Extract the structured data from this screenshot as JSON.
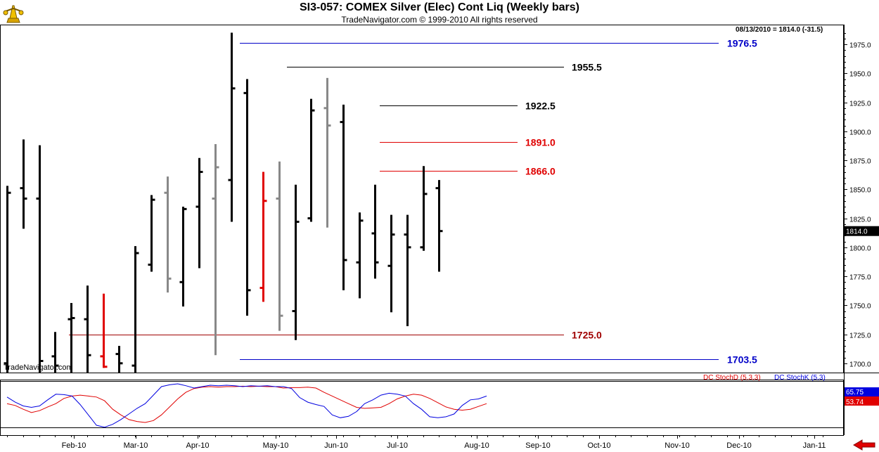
{
  "header": {
    "title": "SI3-057:  COMEX Silver (Elec) Cont Liq  (Weekly bars)",
    "subtitle": "TradeNavigator.com © 1999-2010 All rights reserved",
    "readout": "08/13/2010 = 1814.0 (-31.5)",
    "watermark": "TradeNavigator.com"
  },
  "indicator": {
    "stochd_label": "DC StochD (5,3,3)",
    "stochk_label": "DC StochK (5,3)",
    "stochd_value": "53.74",
    "stochk_value": "65.75",
    "stochd_color": "#e00000",
    "stochk_color": "#0000e0",
    "stochd_values": [
      52,
      48,
      40,
      33,
      37,
      45,
      52,
      63,
      68,
      70,
      68,
      66,
      58,
      40,
      28,
      18,
      14,
      12,
      16,
      28,
      45,
      62,
      76,
      84,
      87,
      88,
      87,
      88,
      88,
      89,
      88,
      89,
      88,
      88,
      85,
      86,
      86,
      87,
      85,
      76,
      68,
      60,
      52,
      44,
      42,
      43,
      44,
      52,
      62,
      68,
      72,
      70,
      63,
      54,
      45,
      40,
      38,
      40,
      46,
      52
    ],
    "stochk_values": [
      66,
      55,
      47,
      44,
      47,
      60,
      72,
      71,
      68,
      50,
      28,
      6,
      2,
      8,
      18,
      30,
      42,
      52,
      70,
      88,
      92,
      94,
      90,
      85,
      88,
      91,
      90,
      91,
      90,
      88,
      90,
      89,
      90,
      88,
      88,
      84,
      65,
      55,
      50,
      46,
      28,
      22,
      25,
      35,
      52,
      60,
      70,
      74,
      72,
      68,
      52,
      40,
      24,
      22,
      24,
      30,
      48,
      60,
      62,
      68
    ]
  },
  "price_tag": "1814.0",
  "chart_data": {
    "type": "ohlc",
    "title": "SI3-057:  COMEX Silver (Elec) Cont Liq  (Weekly bars)",
    "xlabel": "",
    "ylabel": "",
    "ylim": [
      1692,
      1992
    ],
    "grid": false,
    "x_ticks": [
      "Feb-10",
      "Mar-10",
      "Apr-10",
      "May-10",
      "Jun-10",
      "Jul-10",
      "Aug-10",
      "Sep-10",
      "Oct-10",
      "Nov-10",
      "Dec-10",
      "Jan-11"
    ],
    "y_ticks": [
      "1700.0",
      "1725.0",
      "1750.0",
      "1775.0",
      "1800.0",
      "1825.0",
      "1850.0",
      "1875.0",
      "1900.0",
      "1925.0",
      "1950.0",
      "1975.0"
    ],
    "series": [
      {
        "bars": [
          {
            "h": 1853,
            "l": 1692,
            "o": 1700,
            "c": 1847,
            "color": "#000000"
          },
          {
            "h": 1893,
            "l": 1816,
            "o": 1851,
            "c": 1842,
            "color": "#000000"
          },
          {
            "h": 1888,
            "l": 1692,
            "o": 1842,
            "c": 1702,
            "color": "#000000"
          },
          {
            "h": 1727,
            "l": 1692,
            "o": 1706,
            "c": 1698,
            "color": "#000000"
          },
          {
            "h": 1752,
            "l": 1692,
            "o": 1738,
            "c": 1739,
            "color": "#000000"
          },
          {
            "h": 1767,
            "l": 1692,
            "o": 1738,
            "c": 1707,
            "color": "#000000"
          },
          {
            "h": 1760,
            "l": 1696,
            "o": 1706,
            "c": 1697,
            "color": "#e00000"
          },
          {
            "h": 1715,
            "l": 1692,
            "o": 1708,
            "c": 1700,
            "color": "#000000"
          },
          {
            "h": 1801,
            "l": 1692,
            "o": 1698,
            "c": 1795,
            "color": "#000000"
          },
          {
            "h": 1845,
            "l": 1779,
            "o": 1785,
            "c": 1841,
            "color": "#000000"
          },
          {
            "h": 1861,
            "l": 1761,
            "o": 1847,
            "c": 1773,
            "color": "#888888"
          },
          {
            "h": 1835,
            "l": 1749,
            "o": 1770,
            "c": 1833,
            "color": "#000000"
          },
          {
            "h": 1877,
            "l": 1782,
            "o": 1835,
            "c": 1865,
            "color": "#000000"
          },
          {
            "h": 1889,
            "l": 1707,
            "o": 1842,
            "c": 1869,
            "color": "#888888"
          },
          {
            "h": 1985,
            "l": 1822,
            "o": 1858,
            "c": 1937,
            "color": "#000000"
          },
          {
            "h": 1945,
            "l": 1741,
            "o": 1933,
            "c": 1763,
            "color": "#000000"
          },
          {
            "h": 1865,
            "l": 1753,
            "o": 1765,
            "c": 1840,
            "color": "#e00000"
          },
          {
            "h": 1874,
            "l": 1728,
            "o": 1842,
            "c": 1741,
            "color": "#888888"
          },
          {
            "h": 1854,
            "l": 1720,
            "o": 1745,
            "c": 1822,
            "color": "#000000"
          },
          {
            "h": 1928,
            "l": 1822,
            "o": 1825,
            "c": 1918,
            "color": "#000000"
          },
          {
            "h": 1946,
            "l": 1817,
            "o": 1920,
            "c": 1905,
            "color": "#888888"
          },
          {
            "h": 1923,
            "l": 1763,
            "o": 1908,
            "c": 1789,
            "color": "#000000"
          },
          {
            "h": 1830,
            "l": 1756,
            "o": 1787,
            "c": 1823,
            "color": "#000000"
          },
          {
            "h": 1854,
            "l": 1773,
            "o": 1812,
            "c": 1787,
            "color": "#000000"
          },
          {
            "h": 1828,
            "l": 1744,
            "o": 1784,
            "c": 1811,
            "color": "#000000"
          },
          {
            "h": 1828,
            "l": 1732,
            "o": 1811,
            "c": 1800,
            "color": "#000000"
          },
          {
            "h": 1870,
            "l": 1797,
            "o": 1800,
            "c": 1846,
            "color": "#000000"
          },
          {
            "h": 1858,
            "l": 1779,
            "o": 1851,
            "c": 1814,
            "color": "#000000"
          }
        ]
      }
    ],
    "levels": [
      {
        "value": 1976.5,
        "label": "1976.5",
        "color": "#0000c8"
      },
      {
        "value": 1955.5,
        "label": "1955.5",
        "color": "#000000"
      },
      {
        "value": 1922.5,
        "label": "1922.5",
        "color": "#000000"
      },
      {
        "value": 1891.0,
        "label": "1891.0",
        "color": "#e00000"
      },
      {
        "value": 1866.0,
        "label": "1866.0",
        "color": "#e00000"
      },
      {
        "value": 1725.0,
        "label": "1725.0",
        "color": "#a00000"
      },
      {
        "value": 1703.5,
        "label": "1703.5",
        "color": "#0000c8"
      }
    ]
  }
}
